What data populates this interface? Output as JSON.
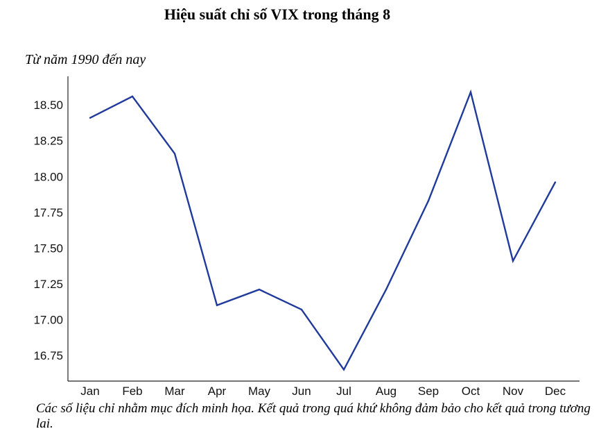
{
  "chart_data": {
    "type": "line",
    "title": "Hiệu suất chỉ số VIX trong tháng 8",
    "subtitle": "Từ năm 1990 đến nay",
    "footnote": "Các số liệu chỉ nhằm mục đích minh họa. Kết quả trong quá khứ không đảm bảo cho kết quả trong tương lai.",
    "categories": [
      "Jan",
      "Feb",
      "Mar",
      "Apr",
      "May",
      "Jun",
      "Jul",
      "Aug",
      "Sep",
      "Oct",
      "Nov",
      "Dec"
    ],
    "series": [
      {
        "values": [
          18.41,
          18.56,
          18.16,
          17.1,
          17.21,
          17.07,
          16.65,
          17.21,
          17.83,
          18.59,
          17.41,
          17.96
        ]
      }
    ],
    "yticks": [
      16.75,
      17.0,
      17.25,
      17.5,
      17.75,
      18.0,
      18.25,
      18.5
    ],
    "ylim": [
      16.57,
      18.7
    ],
    "line_color": "#1f3a9a",
    "grid": false
  }
}
